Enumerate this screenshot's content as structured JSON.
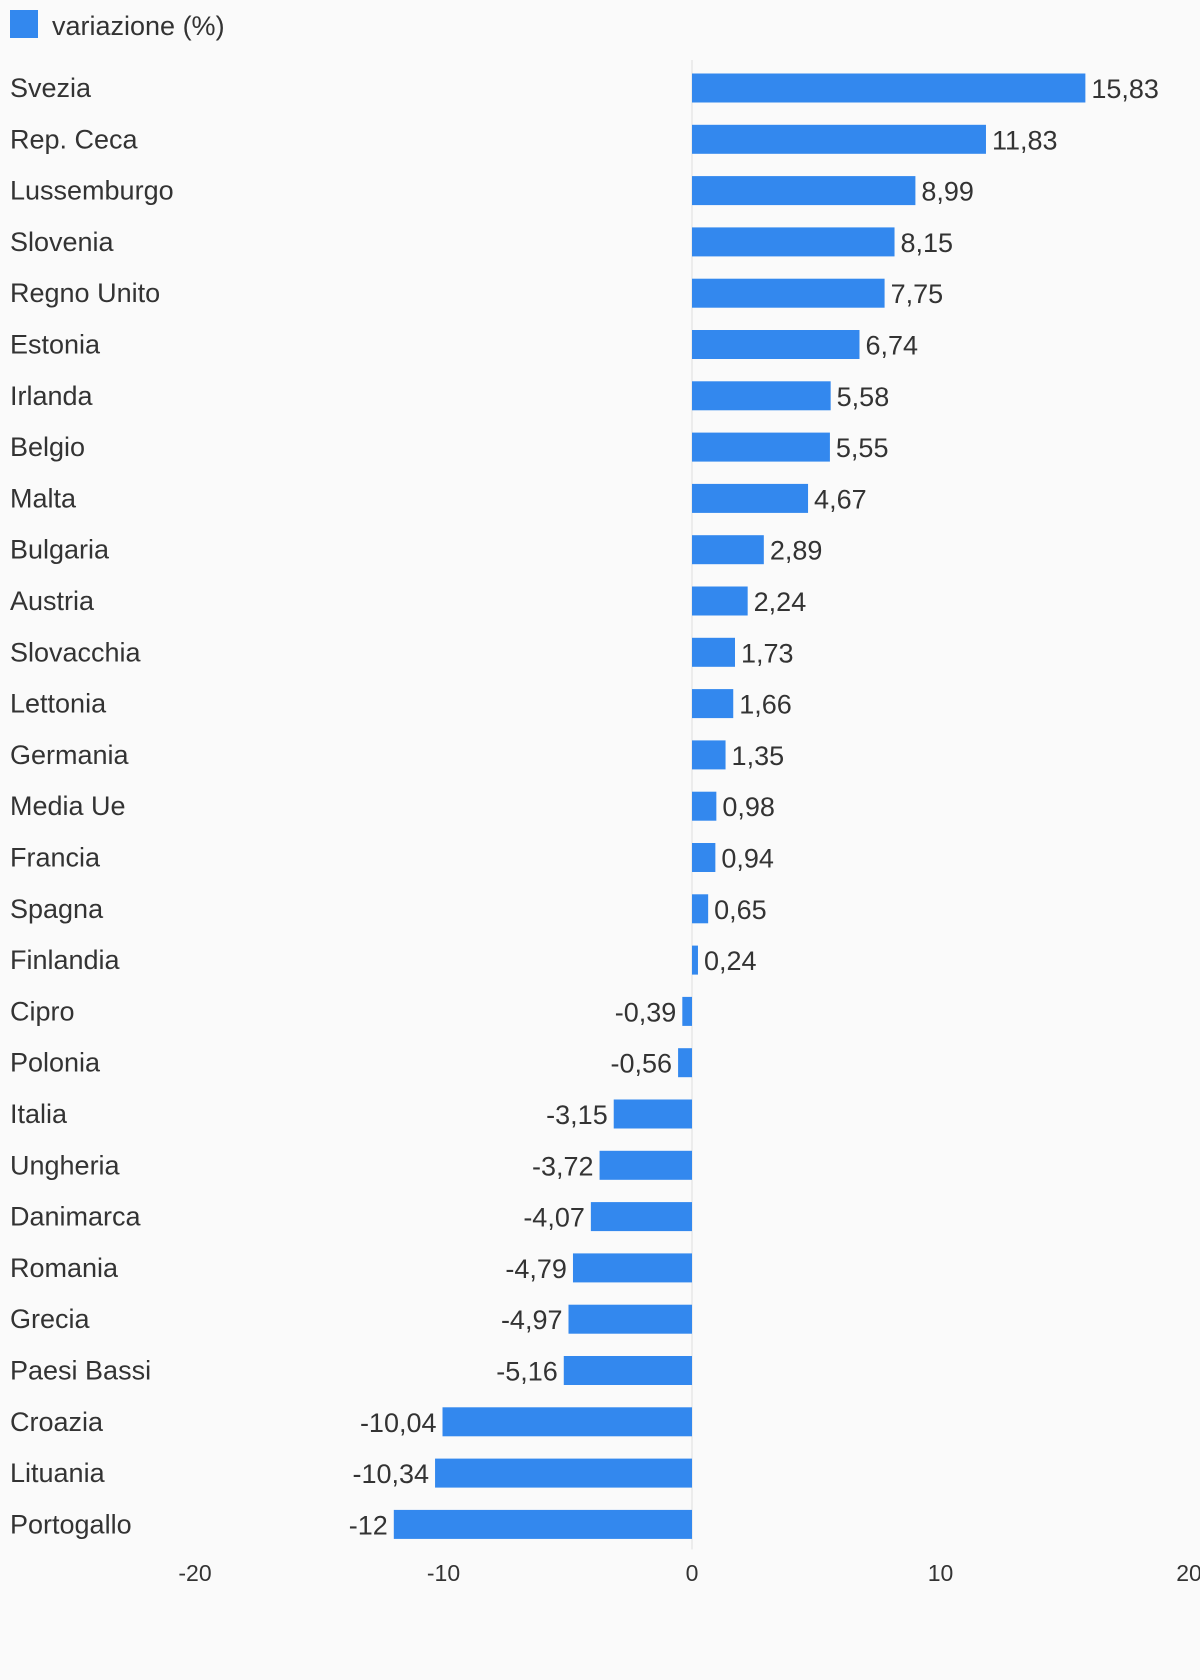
{
  "chart_data": {
    "type": "bar",
    "orientation": "horizontal",
    "legend": {
      "label": "variazione (%)",
      "placement": "top-left"
    },
    "series": [
      {
        "name": "variazione (%)",
        "color": "#3388ee",
        "values": [
          15.83,
          11.83,
          8.99,
          8.15,
          7.75,
          6.74,
          5.58,
          5.55,
          4.67,
          2.89,
          2.24,
          1.73,
          1.66,
          1.35,
          0.98,
          0.94,
          0.65,
          0.24,
          -0.39,
          -0.56,
          -3.15,
          -3.72,
          -4.07,
          -4.79,
          -4.97,
          -5.16,
          -10.04,
          -10.34,
          -12
        ],
        "value_labels": [
          "15,83",
          "11,83",
          "8,99",
          "8,15",
          "7,75",
          "6,74",
          "5,58",
          "5,55",
          "4,67",
          "2,89",
          "2,24",
          "1,73",
          "1,66",
          "1,35",
          "0,98",
          "0,94",
          "0,65",
          "0,24",
          "-0,39",
          "-0,56",
          "-3,15",
          "-3,72",
          "-4,07",
          "-4,79",
          "-4,97",
          "-5,16",
          "-10,04",
          "-10,34",
          "-12"
        ]
      }
    ],
    "categories": [
      "Svezia",
      "Rep. Ceca",
      "Lussemburgo",
      "Slovenia",
      "Regno Unito",
      "Estonia",
      "Irlanda",
      "Belgio",
      "Malta",
      "Bulgaria",
      "Austria",
      "Slovacchia",
      "Lettonia",
      "Germania",
      "Media Ue",
      "Francia",
      "Spagna",
      "Finlandia",
      "Cipro",
      "Polonia",
      "Italia",
      "Ungheria",
      "Danimarca",
      "Romania",
      "Grecia",
      "Paesi Bassi",
      "Croazia",
      "Lituania",
      "Portogallo"
    ],
    "xlim": [
      -20,
      20
    ],
    "xticks": [
      -20,
      -10,
      0,
      10,
      20
    ],
    "xtick_labels": [
      "-20",
      "-10",
      "0",
      "10",
      "20"
    ],
    "grid": false,
    "title": "",
    "xlabel": "",
    "ylabel": ""
  }
}
